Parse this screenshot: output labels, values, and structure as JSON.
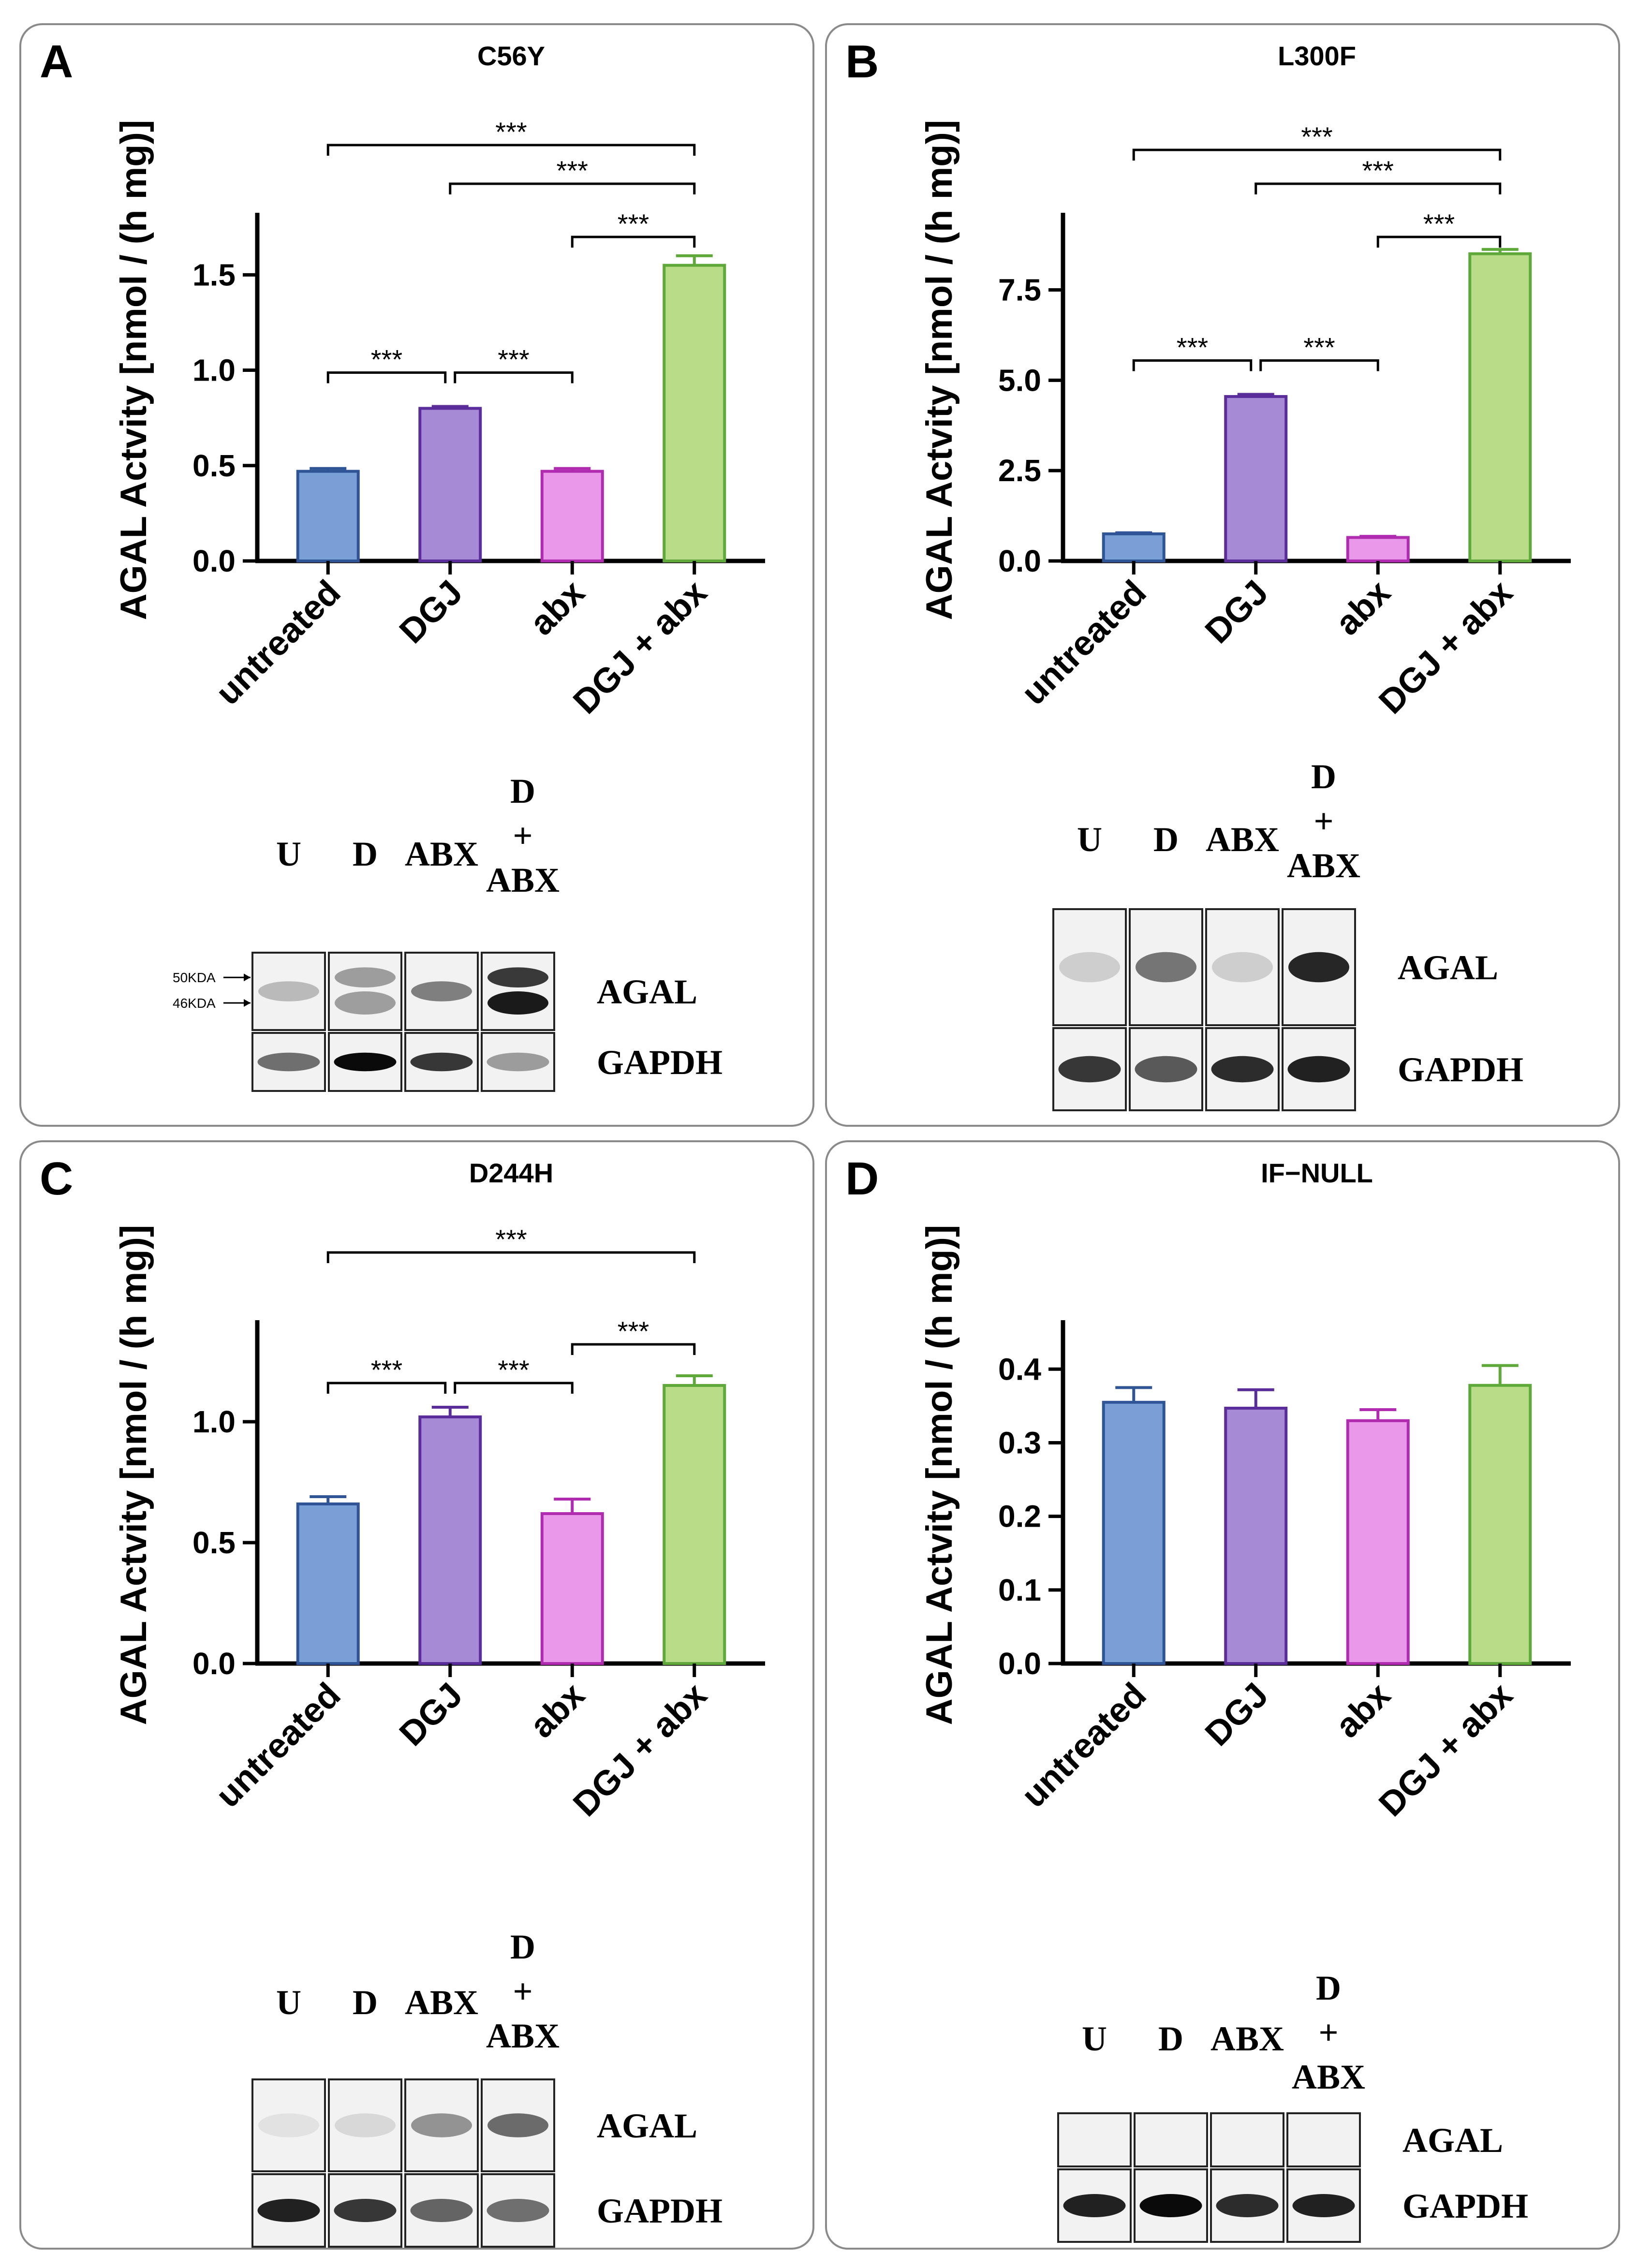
{
  "panels": [
    {
      "letter": "A",
      "blot": {
        "lanes": [
          "U",
          "D",
          "ABX",
          "D\n+\nABX"
        ],
        "rows": [
          "AGAL",
          "GAPDH"
        ],
        "markers": [
          "50KDA",
          "46KDA"
        ],
        "agal_intensity": [
          0.25,
          0.4,
          0.55,
          0.9
        ],
        "agal_lower_intensity": [
          0.0,
          0.35,
          0.0,
          0.95
        ],
        "gapdh_intensity": [
          0.55,
          1.0,
          0.8,
          0.35
        ]
      }
    },
    {
      "letter": "B",
      "blot": {
        "lanes": [
          "U",
          "D",
          "ABX",
          "D\n+\nABX"
        ],
        "rows": [
          "AGAL",
          "GAPDH"
        ],
        "markers": [],
        "agal_intensity": [
          0.15,
          0.6,
          0.15,
          1.0
        ],
        "agal_lower_intensity": [
          0,
          0,
          0,
          0
        ],
        "gapdh_intensity": [
          0.8,
          0.65,
          0.85,
          0.9
        ]
      }
    },
    {
      "letter": "C",
      "blot": {
        "lanes": [
          "U",
          "D",
          "ABX",
          "D\n+\nABX"
        ],
        "rows": [
          "AGAL",
          "GAPDH"
        ],
        "markers": [],
        "agal_intensity": [
          0.05,
          0.1,
          0.45,
          0.65
        ],
        "agal_lower_intensity": [
          0,
          0,
          0,
          0
        ],
        "gapdh_intensity": [
          0.9,
          0.8,
          0.6,
          0.55
        ]
      }
    },
    {
      "letter": "D",
      "blot": {
        "lanes": [
          "U",
          "D",
          "ABX",
          "D\n+\nABX"
        ],
        "rows": [
          "AGAL",
          "GAPDH"
        ],
        "markers": [],
        "agal_intensity": [
          0,
          0,
          0,
          0
        ],
        "agal_lower_intensity": [
          0,
          0,
          0,
          0
        ],
        "gapdh_intensity": [
          0.9,
          1.0,
          0.85,
          0.9
        ]
      }
    }
  ],
  "chart_data": [
    {
      "type": "bar",
      "title": "C56Y",
      "ylabel": "AGAL Actvity [nmol / (h mg)]",
      "categories": [
        "untreated",
        "DGJ",
        "abx",
        "DGJ + abx"
      ],
      "values": [
        0.47,
        0.8,
        0.47,
        1.55
      ],
      "errors": [
        0.015,
        0.01,
        0.015,
        0.05
      ],
      "ylim": [
        0,
        1.8
      ],
      "yticks": [
        0,
        0.5,
        1.0,
        1.5
      ],
      "yticklabels": [
        "0.0",
        "0.5",
        "1.0",
        "1.5"
      ],
      "colors": [
        "#7a9fd6",
        "#a68ad6",
        "#ea98ea",
        "#b8dc88"
      ],
      "edge_colors": [
        "#2f5597",
        "#5a2d9a",
        "#b02bb0",
        "#5fa83a"
      ],
      "significance": [
        {
          "from": 0,
          "to": 3,
          "label": "***",
          "level": 4
        },
        {
          "from": 1,
          "to": 3,
          "label": "***",
          "level": 3
        },
        {
          "from": 2,
          "to": 3,
          "label": "***",
          "level": 2
        },
        {
          "from": 0,
          "to": 1,
          "label": "***",
          "level": 0
        },
        {
          "from": 1,
          "to": 2,
          "label": "***",
          "level": 0
        }
      ]
    },
    {
      "type": "bar",
      "title": "L300F",
      "ylabel": "AGAL Actvity [nmol / (h mg)]",
      "categories": [
        "untreated",
        "DGJ",
        "abx",
        "DGJ + abx"
      ],
      "values": [
        0.75,
        4.55,
        0.65,
        8.5
      ],
      "errors": [
        0.03,
        0.06,
        0.03,
        0.12
      ],
      "ylim": [
        0,
        9.5
      ],
      "yticks": [
        0,
        2.5,
        5.0,
        7.5
      ],
      "yticklabels": [
        "0.0",
        "2.5",
        "5.0",
        "7.5"
      ],
      "colors": [
        "#7a9fd6",
        "#a68ad6",
        "#ea98ea",
        "#b8dc88"
      ],
      "edge_colors": [
        "#2f5597",
        "#5a2d9a",
        "#b02bb0",
        "#5fa83a"
      ],
      "significance": [
        {
          "from": 0,
          "to": 3,
          "label": "***",
          "level": 4
        },
        {
          "from": 1,
          "to": 3,
          "label": "***",
          "level": 3
        },
        {
          "from": 2,
          "to": 3,
          "label": "***",
          "level": 2
        },
        {
          "from": 0,
          "to": 1,
          "label": "***",
          "level": 0
        },
        {
          "from": 1,
          "to": 2,
          "label": "***",
          "level": 0
        }
      ]
    },
    {
      "type": "bar",
      "title": "D244H",
      "ylabel": "AGAL Actvity [nmol / (h mg)]",
      "categories": [
        "untreated",
        "DGJ",
        "abx",
        "DGJ + abx"
      ],
      "values": [
        0.66,
        1.02,
        0.62,
        1.15
      ],
      "errors": [
        0.03,
        0.04,
        0.06,
        0.04
      ],
      "ylim": [
        0,
        1.4
      ],
      "yticks": [
        0,
        0.5,
        1.0
      ],
      "yticklabels": [
        "0.0",
        "0.5",
        "1.0"
      ],
      "colors": [
        "#7a9fd6",
        "#a68ad6",
        "#ea98ea",
        "#b8dc88"
      ],
      "edge_colors": [
        "#2f5597",
        "#5a2d9a",
        "#b02bb0",
        "#5fa83a"
      ],
      "significance": [
        {
          "from": 0,
          "to": 3,
          "label": "***",
          "level": 4
        },
        {
          "from": 2,
          "to": 3,
          "label": "***",
          "level": 2
        },
        {
          "from": 0,
          "to": 1,
          "label": "***",
          "level": 1
        },
        {
          "from": 1,
          "to": 2,
          "label": "***",
          "level": 1
        }
      ]
    },
    {
      "type": "bar",
      "title": "IF−NULL",
      "ylabel": "AGAL Actvity [nmol / (h mg)]",
      "categories": [
        "untreated",
        "DGJ",
        "abx",
        "DGJ + abx"
      ],
      "values": [
        0.355,
        0.347,
        0.33,
        0.378
      ],
      "errors": [
        0.02,
        0.025,
        0.015,
        0.027
      ],
      "ylim": [
        0,
        0.46
      ],
      "yticks": [
        0,
        0.1,
        0.2,
        0.3,
        0.4
      ],
      "yticklabels": [
        "0.0",
        "0.1",
        "0.2",
        "0.3",
        "0.4"
      ],
      "colors": [
        "#7a9fd6",
        "#a68ad6",
        "#ea98ea",
        "#b8dc88"
      ],
      "edge_colors": [
        "#2f5597",
        "#5a2d9a",
        "#b02bb0",
        "#5fa83a"
      ],
      "significance": []
    }
  ]
}
